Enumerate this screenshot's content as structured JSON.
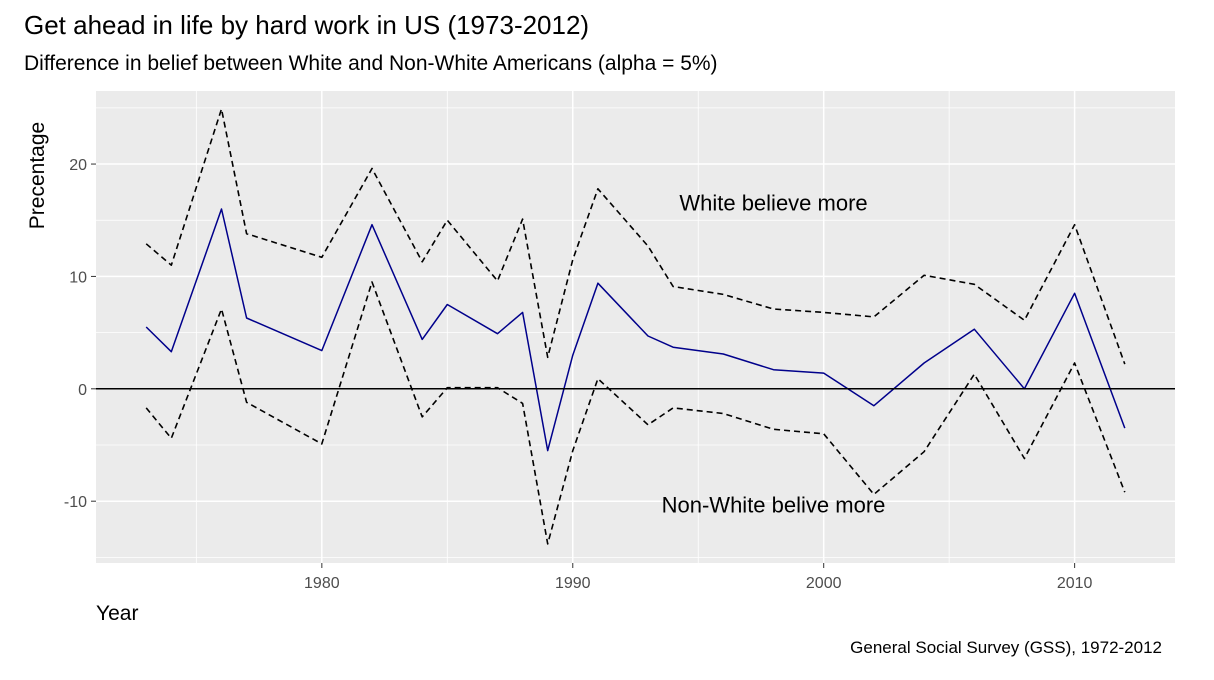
{
  "chart_data": {
    "type": "line",
    "title": "Get ahead in life by hard work in US (1973-2012)",
    "subtitle": "Difference in belief between White and Non-White Americans (alpha = 5%)",
    "caption": "General Social Survey (GSS), 1972-2012",
    "xlabel": "Year",
    "ylabel": "Precentage",
    "xlim": [
      1971.0,
      2014.0
    ],
    "ylim": [
      -15.5,
      26.5
    ],
    "xticks": [
      1980,
      1990,
      2000,
      2010
    ],
    "yticks": [
      -10,
      0,
      10,
      20
    ],
    "grid": true,
    "reference_line": 0,
    "x": [
      1973,
      1974,
      1976,
      1977,
      1980,
      1982,
      1984,
      1985,
      1987,
      1988,
      1989,
      1990,
      1991,
      1993,
      1994,
      1996,
      1998,
      2000,
      2002,
      2004,
      2006,
      2008,
      2010,
      2012
    ],
    "series": [
      {
        "role": "estimate",
        "color": "#00008b",
        "style": "solid",
        "values": [
          5.5,
          3.3,
          16.0,
          6.3,
          3.4,
          14.6,
          4.4,
          7.5,
          4.9,
          6.8,
          -5.5,
          3.0,
          9.4,
          4.7,
          3.7,
          3.1,
          1.7,
          1.4,
          -1.5,
          2.3,
          5.3,
          0.0,
          8.5,
          -3.5
        ]
      },
      {
        "role": "upper",
        "color": "#000000",
        "style": "dashed",
        "values": [
          12.9,
          11.0,
          24.9,
          13.8,
          11.7,
          19.6,
          11.3,
          15.0,
          9.6,
          15.1,
          2.8,
          11.5,
          17.8,
          12.7,
          9.1,
          8.4,
          7.1,
          6.8,
          6.4,
          10.1,
          9.3,
          6.1,
          14.6,
          2.2
        ]
      },
      {
        "role": "lower",
        "color": "#000000",
        "style": "dashed",
        "values": [
          -1.7,
          -4.4,
          7.1,
          -1.2,
          -4.9,
          9.5,
          -2.5,
          0.1,
          0.1,
          -1.3,
          -13.8,
          -5.5,
          0.9,
          -3.2,
          -1.7,
          -2.2,
          -3.6,
          -4.0,
          -9.4,
          -5.6,
          1.3,
          -6.2,
          2.3,
          -9.2
        ]
      }
    ],
    "annotations": [
      {
        "text": "White believe more",
        "x": 1998.0,
        "y": 16.6
      },
      {
        "text": "Non-White belive more",
        "x": 1998.0,
        "y": -10.3
      }
    ]
  },
  "colors": {
    "panel_bg": "#ebebeb",
    "grid": "#ffffff",
    "estimate_line": "#00008b",
    "ci_line": "#000000",
    "zero_line": "#000000"
  }
}
